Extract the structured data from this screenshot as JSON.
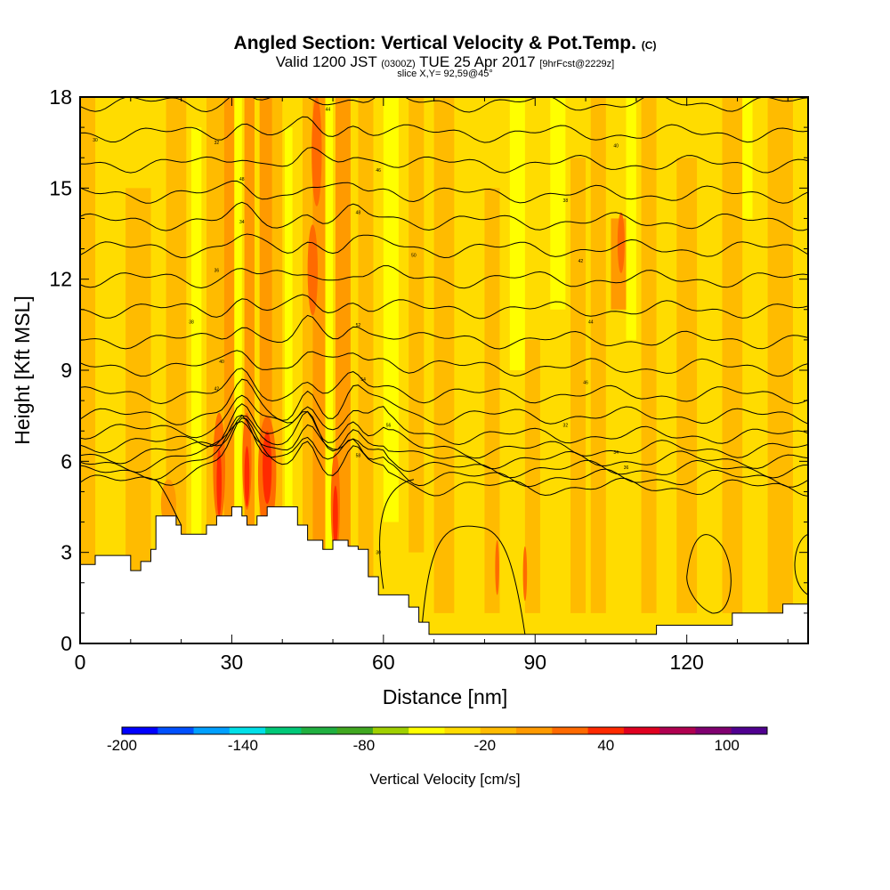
{
  "chart_data": {
    "type": "heatmap",
    "title": "Angled Section: Vertical Velocity & Pot.Temp.",
    "title_unit": "(C)",
    "subtitle": {
      "valid_prefix": "Valid 1200 JST",
      "zulu": "(0300Z)",
      "date": "TUE 25 Apr 2017",
      "forecast": "[9hrFcst@2229z]"
    },
    "slice_label": "slice X,Y= 92,59@45°",
    "xlabel": "Distance [nm]",
    "ylabel": "Height [Kft MSL]",
    "xlim": [
      0,
      144
    ],
    "ylim": [
      0,
      18
    ],
    "x_ticks": [
      "0",
      "30",
      "60",
      "90",
      "120"
    ],
    "y_ticks": [
      "0",
      "3",
      "6",
      "9",
      "12",
      "15",
      "18"
    ],
    "x_tick_values": [
      0,
      30,
      60,
      90,
      120
    ],
    "y_tick_values": [
      0,
      3,
      6,
      9,
      12,
      15,
      18
    ],
    "colorbar": {
      "label": "Vertical Velocity [cm/s]",
      "range": [
        -200,
        120
      ],
      "step": 20,
      "tick_labels": [
        "-200",
        "-140",
        "-80",
        "-20",
        "40",
        "100"
      ],
      "tick_values": [
        -200,
        -140,
        -80,
        -20,
        40,
        100
      ],
      "colors": [
        "#0000ff",
        "#0050ff",
        "#00a0ff",
        "#00e0e8",
        "#00c878",
        "#20b040",
        "#40a820",
        "#a0d000",
        "#ffff00",
        "#ffdc00",
        "#ffbb00",
        "#ff9a00",
        "#ff6a00",
        "#ff2a00",
        "#e00020",
        "#b00050",
        "#800070",
        "#500090"
      ]
    },
    "field_colors": {
      "near_zero": "#ffdc00",
      "weak_up": "#ffbb00",
      "moderate_up": "#ff9a00",
      "strong_up": "#ff6a00",
      "very_strong_up": "#ff2a00",
      "weak_down": "#ffff00"
    },
    "terrain": [
      [
        0,
        2.6
      ],
      [
        3,
        2.9
      ],
      [
        8,
        2.9
      ],
      [
        10,
        2.4
      ],
      [
        12,
        2.7
      ],
      [
        14,
        3.1
      ],
      [
        15,
        4.2
      ],
      [
        18,
        4.2
      ],
      [
        19,
        3.9
      ],
      [
        20,
        3.6
      ],
      [
        23,
        3.6
      ],
      [
        25,
        3.9
      ],
      [
        27,
        4.2
      ],
      [
        30,
        4.5
      ],
      [
        32,
        4.2
      ],
      [
        33,
        3.9
      ],
      [
        35,
        4.2
      ],
      [
        37,
        4.5
      ],
      [
        42,
        4.5
      ],
      [
        43,
        3.9
      ],
      [
        45,
        3.4
      ],
      [
        48,
        3.1
      ],
      [
        50,
        3.4
      ],
      [
        53,
        3.2
      ],
      [
        55,
        3.1
      ],
      [
        57,
        2.2
      ],
      [
        59,
        1.6
      ],
      [
        63,
        1.6
      ],
      [
        65,
        1.2
      ],
      [
        67,
        0.7
      ],
      [
        69,
        0.3
      ],
      [
        113,
        0.3
      ],
      [
        114,
        0.6
      ],
      [
        128,
        0.6
      ],
      [
        129,
        1.0
      ],
      [
        138,
        1.0
      ],
      [
        139,
        1.3
      ],
      [
        144,
        1.3
      ]
    ],
    "contour_labels": [
      "30",
      "32",
      "34",
      "36",
      "38",
      "40",
      "42",
      "44",
      "46",
      "48",
      "50",
      "52",
      "54",
      "56",
      "58"
    ]
  }
}
